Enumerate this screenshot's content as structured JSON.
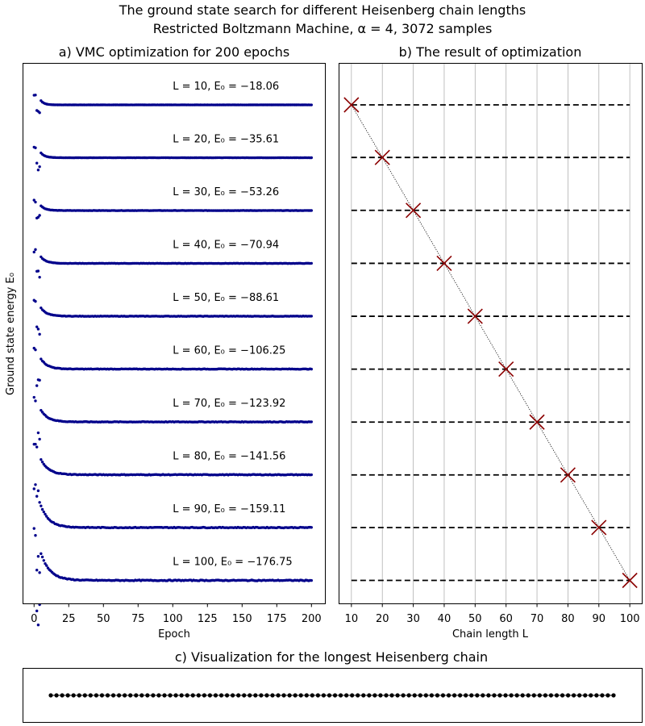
{
  "figure": {
    "title_line1": "The ground state search for different Heisenberg chain lengths",
    "title_line2": "Restricted Boltzmann Machine, α = 4, 3072 samples"
  },
  "chart_data": [
    {
      "type": "scatter",
      "title": "a) VMC optimization for 200 epochs",
      "xlabel": "Epoch",
      "ylabel": "Ground state energy E₀",
      "xlim": [
        -8,
        210
      ],
      "xticks": [
        0,
        25,
        50,
        75,
        100,
        125,
        150,
        175,
        200
      ],
      "y_ticks_shown": false,
      "marker_color": "#00008b",
      "series": [
        {
          "name": "L = 10, E₀ = −18.06",
          "L": 10,
          "E0": -18.06,
          "initial_offset": 1.2
        },
        {
          "name": "L = 20, E₀ = −35.61",
          "L": 20,
          "E0": -35.61,
          "initial_offset": 1.3
        },
        {
          "name": "L = 30, E₀ = −53.26",
          "L": 30,
          "E0": -53.26,
          "initial_offset": 1.2
        },
        {
          "name": "L = 40, E₀ = −70.94",
          "L": 40,
          "E0": -70.94,
          "initial_offset": 1.6
        },
        {
          "name": "L = 50, E₀ = −88.61",
          "L": 50,
          "E0": -88.61,
          "initial_offset": 2.0
        },
        {
          "name": "L = 60, E₀ = −106.25",
          "L": 60,
          "E0": -106.25,
          "initial_offset": 2.4
        },
        {
          "name": "L = 70, E₀ = −123.92",
          "L": 70,
          "E0": -123.92,
          "initial_offset": 2.7
        },
        {
          "name": "L = 80, E₀ = −141.56",
          "L": 80,
          "E0": -141.56,
          "initial_offset": 3.4
        },
        {
          "name": "L = 90, E₀ = −159.11",
          "L": 90,
          "E0": -159.11,
          "initial_offset": 4.8
        },
        {
          "name": "L = 100, E₀ = −176.75",
          "L": 100,
          "E0": -176.75,
          "initial_offset": 6.0
        }
      ],
      "epochs": 200
    },
    {
      "type": "line",
      "title": "b) The result of optimization",
      "xlabel": "Chain length L",
      "xlim": [
        6,
        104
      ],
      "xticks": [
        10,
        20,
        30,
        40,
        50,
        60,
        70,
        80,
        90,
        100
      ],
      "grid": "vertical",
      "marker": "x",
      "marker_color": "#8b0000",
      "x": [
        10,
        20,
        30,
        40,
        50,
        60,
        70,
        80,
        90,
        100
      ],
      "y": [
        -18.06,
        -35.61,
        -53.26,
        -70.94,
        -88.61,
        -106.25,
        -123.92,
        -141.56,
        -159.11,
        -176.75
      ]
    },
    {
      "type": "scatter",
      "title": "c) Visualization for the longest Heisenberg chain",
      "sites": 100,
      "marker_color": "#000000"
    }
  ]
}
